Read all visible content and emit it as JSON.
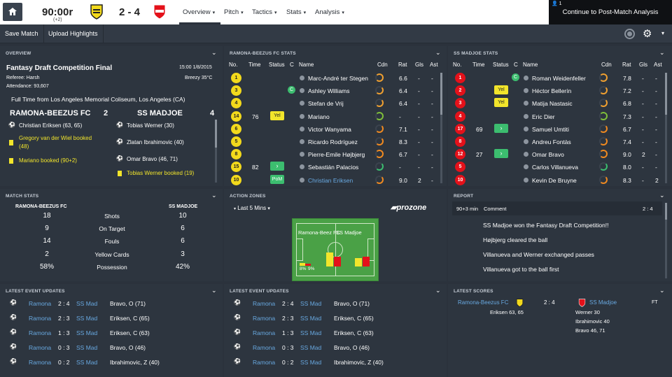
{
  "topbar": {
    "time": "90:00r",
    "added_time": "(+2)",
    "score": "2 - 4",
    "nav": [
      "Overview",
      "Pitch",
      "Tactics",
      "Stats",
      "Analysis"
    ],
    "continue_label": "Continue to Post-Match Analysis",
    "notification_count": "1"
  },
  "toolbar": {
    "save_match": "Save Match",
    "upload_highlights": "Upload Highlights"
  },
  "overview": {
    "title": "OVERVIEW",
    "competition": "Fantasy Draft Competition Final",
    "datetime": "15:00 1/8/2015",
    "referee": "Referee: Harsh",
    "weather": "Breezy 35°C",
    "attendance": "Attendance: 93,607",
    "result_text": "Full Time from Los Angeles Memorial Coliseum, Los Angeles (CA)",
    "home_team": "RAMONA-BEEZUS FC",
    "home_score": "2",
    "away_team": "SS MADJOE",
    "away_score": "4",
    "home_events": [
      "Christian Eriksen (63, 65)",
      "Gregory van der Wiel booked (48)",
      "Mariano booked (90+2)"
    ],
    "home_event_line2": "(48)",
    "home_event_line1": "Gregory van der Wiel booked",
    "away_events": [
      "Tobias Werner (30)",
      "Zlatan Ibrahimovic (40)",
      "Omar Bravo (46, 71)",
      "Tobias Werner booked (19)"
    ]
  },
  "home_stats": {
    "title": "RAMONA-BEEZUS FC STATS",
    "headers": [
      "No.",
      "Time",
      "Status",
      "C",
      "Name",
      "Cdn",
      "Rat",
      "Gls",
      "Ast"
    ],
    "rows": [
      {
        "no": "1",
        "time": "",
        "status": "",
        "name": "Marc-André ter Stegen",
        "rat": "6.6",
        "gls": "-",
        "ast": "-"
      },
      {
        "no": "3",
        "time": "",
        "status": "C",
        "name": "Ashley Williams",
        "rat": "6.4",
        "gls": "-",
        "ast": "-"
      },
      {
        "no": "4",
        "time": "",
        "status": "",
        "name": "Stefan de Vrij",
        "rat": "6.4",
        "gls": "-",
        "ast": "-"
      },
      {
        "no": "14",
        "time": "76",
        "status": "Yel",
        "name": "Mariano",
        "rat": "-",
        "gls": "-",
        "ast": "-"
      },
      {
        "no": "6",
        "time": "",
        "status": "",
        "name": "Victor Wanyama",
        "rat": "7.1",
        "gls": "-",
        "ast": "-"
      },
      {
        "no": "5",
        "time": "",
        "status": "",
        "name": "Ricardo Rodríguez",
        "rat": "8.3",
        "gls": "-",
        "ast": "-"
      },
      {
        "no": "8",
        "time": "",
        "status": "",
        "name": "Pierre-Emile Højbjerg",
        "rat": "6.7",
        "gls": "-",
        "ast": "-"
      },
      {
        "no": "15",
        "time": "82",
        "status": ">",
        "name": "Sebastián Palacios",
        "rat": "-",
        "gls": "-",
        "ast": "-"
      },
      {
        "no": "10",
        "time": "",
        "status": "PoM",
        "name": "Christian Eriksen",
        "rat": "9.0",
        "gls": "2",
        "ast": "-"
      }
    ]
  },
  "away_stats": {
    "title": "SS MADJOE STATS",
    "headers": [
      "No.",
      "Time",
      "Status",
      "C",
      "Name",
      "Cdn",
      "Rat",
      "Gls",
      "Ast"
    ],
    "rows": [
      {
        "no": "1",
        "time": "",
        "status": "C",
        "name": "Roman Weidenfeller",
        "rat": "7.8",
        "gls": "-",
        "ast": "-"
      },
      {
        "no": "2",
        "time": "",
        "status": "Yel",
        "name": "Héctor Bellerín",
        "rat": "7.2",
        "gls": "-",
        "ast": "-"
      },
      {
        "no": "3",
        "time": "",
        "status": "Yel",
        "name": "Matija Nastasic",
        "rat": "6.8",
        "gls": "-",
        "ast": "-"
      },
      {
        "no": "4",
        "time": "",
        "status": "",
        "name": "Eric Dier",
        "rat": "7.3",
        "gls": "-",
        "ast": "-"
      },
      {
        "no": "17",
        "time": "69",
        "status": ">",
        "name": "Samuel Umtiti",
        "rat": "6.7",
        "gls": "-",
        "ast": "-"
      },
      {
        "no": "8",
        "time": "",
        "status": "",
        "name": "Andreu Fontàs",
        "rat": "7.4",
        "gls": "-",
        "ast": "-"
      },
      {
        "no": "12",
        "time": "27",
        "status": ">",
        "name": "Omar Bravo",
        "rat": "9.0",
        "gls": "2",
        "ast": "-"
      },
      {
        "no": "5",
        "time": "",
        "status": "",
        "name": "Carlos Villanueva",
        "rat": "8.0",
        "gls": "-",
        "ast": "-"
      },
      {
        "no": "10",
        "time": "",
        "status": "",
        "name": "Kevin De Bruyne",
        "rat": "8.3",
        "gls": "-",
        "ast": "2"
      }
    ]
  },
  "match_stats": {
    "title": "MATCH STATS",
    "home": "RAMONA-BEEZUS FC",
    "away": "SS MADJOE",
    "rows": [
      {
        "label": "Shots",
        "home": "18",
        "away": "10"
      },
      {
        "label": "On Target",
        "home": "9",
        "away": "6"
      },
      {
        "label": "Fouls",
        "home": "14",
        "away": "6"
      },
      {
        "label": "Yellow Cards",
        "home": "2",
        "away": "3"
      },
      {
        "label": "Possession",
        "home": "58%",
        "away": "42%"
      }
    ]
  },
  "action_zones": {
    "title": "ACTION ZONES",
    "filter": "Last 5 Mins",
    "brand": "prozone",
    "home_label": "Ramona-Beez FC",
    "away_label": "SS Madjoe",
    "pct_left": "8%",
    "pct_right": "9%"
  },
  "report": {
    "title": "REPORT",
    "time": "90+3 min",
    "label": "Comment",
    "score": "2 : 4",
    "lines": [
      "SS Madjoe won the Fantasy Draft Competition!!",
      "Højbjerg cleared the ball",
      "Villanueva and Werner exchanged passes",
      "Villanueva got to the ball first"
    ]
  },
  "events_left": {
    "title": "LATEST EVENT UPDATES",
    "rows": [
      {
        "home": "Ramona",
        "score": "2 : 4",
        "away": "SS Mad",
        "text": "Bravo, O (71)"
      },
      {
        "home": "Ramona",
        "score": "2 : 3",
        "away": "SS Mad",
        "text": "Eriksen, C (65)"
      },
      {
        "home": "Ramona",
        "score": "1 : 3",
        "away": "SS Mad",
        "text": "Eriksen, C (63)"
      },
      {
        "home": "Ramona",
        "score": "0 : 3",
        "away": "SS Mad",
        "text": "Bravo, O (46)"
      },
      {
        "home": "Ramona",
        "score": "0 : 2",
        "away": "SS Mad",
        "text": "Ibrahimovic, Z (40)"
      }
    ]
  },
  "events_mid": {
    "title": "LATEST EVENT UPDATES",
    "rows": [
      {
        "home": "Ramona",
        "score": "2 : 4",
        "away": "SS Mad",
        "text": "Bravo, O (71)"
      },
      {
        "home": "Ramona",
        "score": "2 : 3",
        "away": "SS Mad",
        "text": "Eriksen, C (65)"
      },
      {
        "home": "Ramona",
        "score": "1 : 3",
        "away": "SS Mad",
        "text": "Eriksen, C (63)"
      },
      {
        "home": "Ramona",
        "score": "0 : 3",
        "away": "SS Mad",
        "text": "Bravo, O (46)"
      },
      {
        "home": "Ramona",
        "score": "0 : 2",
        "away": "SS Mad",
        "text": "Ibrahimovic, Z (40)"
      }
    ]
  },
  "latest_scores": {
    "title": "LATEST SCORES",
    "home": "Ramona-Beezus FC",
    "score": "2 : 4",
    "away": "SS Madjoe",
    "status": "FT",
    "home_scorers": [
      "Eriksen 63, 65"
    ],
    "away_scorers": [
      "Werner 30",
      "Ibrahimovic 40",
      "Bravo 46, 71"
    ]
  },
  "colors": {
    "accent_green": "#3cbd6f",
    "home_yellow": "#f2d91c",
    "away_red": "#e4111a",
    "link_blue": "#68a8e0"
  }
}
